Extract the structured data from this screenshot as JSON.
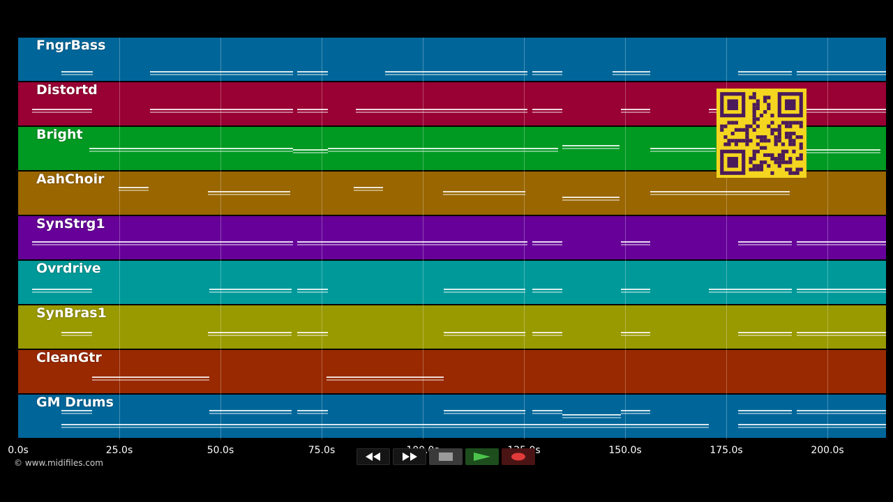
{
  "tracks": [
    {
      "name": "FngrBass",
      "color": "#006699"
    },
    {
      "name": "Distortd",
      "color": "#990033"
    },
    {
      "name": "Bright",
      "color": "#009922"
    },
    {
      "name": "AahChoir",
      "color": "#996600"
    },
    {
      "name": "SynStrg1",
      "color": "#660099"
    },
    {
      "name": "Ovrdrive",
      "color": "#009999"
    },
    {
      "name": "SynBras1",
      "color": "#999900"
    },
    {
      "name": "CleanGtr",
      "color": "#992900"
    },
    {
      "name": "GM Drums",
      "color": "#006699"
    }
  ],
  "timeline": {
    "ticks": [
      "0.0s",
      "25.0s",
      "50.0s",
      "75.0s",
      "100.0s",
      "125.0s",
      "150.0s",
      "175.0s",
      "200.0s"
    ]
  },
  "copyright": "© www.midifiles.com",
  "transport": {
    "buttons": [
      "rewind-icon",
      "fast-forward-icon",
      "stop-icon",
      "play-icon",
      "record-icon"
    ],
    "play_color": "#4cc44c",
    "record_color": "#e03a3a"
  },
  "qr_colors": {
    "bg": "#f4d51f",
    "fg": "#4a1a5a"
  }
}
